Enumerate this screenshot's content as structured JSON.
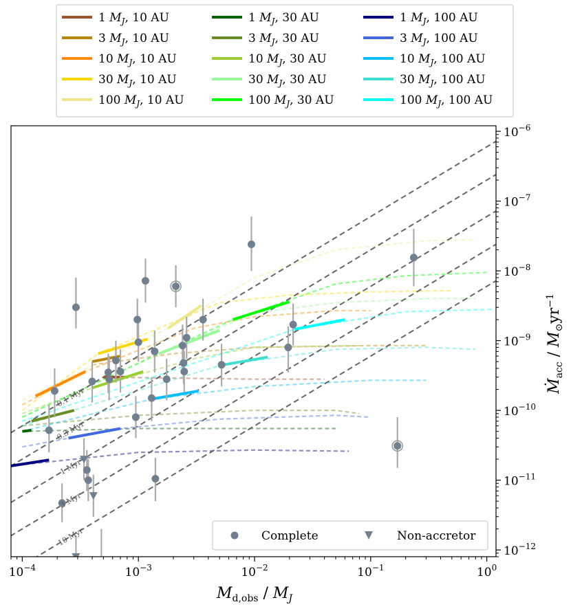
{
  "chart_data": {
    "type": "scatter",
    "x_scale": "log",
    "y_scale": "log",
    "xlim": [
      8e-05,
      1.2
    ],
    "ylim": [
      8e-13,
      1.2e-06
    ],
    "xlabel": "M_d,obs / M_J",
    "ylabel": "Ṁ_acc / M⊙yr⁻¹",
    "x_ticks": [
      {
        "value": 0.0001,
        "label": "10",
        "exp": "−4"
      },
      {
        "value": 0.001,
        "label": "10",
        "exp": "−3"
      },
      {
        "value": 0.01,
        "label": "10",
        "exp": "−2"
      },
      {
        "value": 0.1,
        "label": "10",
        "exp": "−1"
      },
      {
        "value": 1,
        "label": "10",
        "exp": "0"
      }
    ],
    "y_ticks": [
      {
        "value": 1e-12,
        "label": "10",
        "exp": "−12"
      },
      {
        "value": 1e-11,
        "label": "10",
        "exp": "−11"
      },
      {
        "value": 1e-10,
        "label": "10",
        "exp": "−10"
      },
      {
        "value": 1e-09,
        "label": "10",
        "exp": "−9"
      },
      {
        "value": 1e-08,
        "label": "10",
        "exp": "−8"
      },
      {
        "value": 1e-07,
        "label": "10",
        "exp": "−7"
      },
      {
        "value": 1e-06,
        "label": "10",
        "exp": "−6"
      }
    ],
    "legend_top": [
      {
        "label": "1 M_J, 10 AU",
        "mass": "1",
        "dist": "10 AU",
        "color": "#a0522d"
      },
      {
        "label": "3 M_J, 10 AU",
        "mass": "3",
        "dist": "10 AU",
        "color": "#b8860b"
      },
      {
        "label": "10 M_J, 10 AU",
        "mass": "10",
        "dist": "10 AU",
        "color": "#ff8c00"
      },
      {
        "label": "30 M_J, 10 AU",
        "mass": "30",
        "dist": "10 AU",
        "color": "#ffd700"
      },
      {
        "label": "100 M_J, 10 AU",
        "mass": "100",
        "dist": "10 AU",
        "color": "#f0e68c"
      },
      {
        "label": "1 M_J, 30 AU",
        "mass": "1",
        "dist": "30 AU",
        "color": "#006400"
      },
      {
        "label": "3 M_J, 30 AU",
        "mass": "3",
        "dist": "30 AU",
        "color": "#6b8e23"
      },
      {
        "label": "10 M_J, 30 AU",
        "mass": "10",
        "dist": "30 AU",
        "color": "#9acd32"
      },
      {
        "label": "30 M_J, 30 AU",
        "mass": "30",
        "dist": "30 AU",
        "color": "#98fb98"
      },
      {
        "label": "100 M_J, 30 AU",
        "mass": "100",
        "dist": "30 AU",
        "color": "#00ff00"
      },
      {
        "label": "1 M_J, 100 AU",
        "mass": "1",
        "dist": "100 AU",
        "color": "#000080"
      },
      {
        "label": "3 M_J, 100 AU",
        "mass": "3",
        "dist": "100 AU",
        "color": "#4169e1"
      },
      {
        "label": "10 M_J, 100 AU",
        "mass": "10",
        "dist": "100 AU",
        "color": "#00bfff"
      },
      {
        "label": "30 M_J, 100 AU",
        "mass": "30",
        "dist": "100 AU",
        "color": "#40e0d0"
      },
      {
        "label": "100 M_J, 100 AU",
        "mass": "100",
        "dist": "100 AU",
        "color": "#00ffff"
      }
    ],
    "legend_bottom": [
      {
        "label": "Complete",
        "marker": "circle",
        "color": "#708090"
      },
      {
        "label": "Non-accretor",
        "marker": "triangle-down",
        "color": "#708090"
      }
    ],
    "isochrones": [
      {
        "label": "0.1 Myr",
        "y_at_x_1": 6e-07,
        "label_x": 0.00026,
        "angle": -30
      },
      {
        "label": "0.3 Myr",
        "y_at_x_1": 2e-07,
        "label_x": 0.00026,
        "angle": -30
      },
      {
        "label": "1 Myr",
        "y_at_x_1": 6e-08,
        "label_x": 0.00026,
        "angle": -30
      },
      {
        "label": "3 Myr",
        "y_at_x_1": 2e-08,
        "label_x": 0.00026,
        "angle": -30
      },
      {
        "label": "10 Myr",
        "y_at_x_1": 6e-09,
        "label_x": 0.00026,
        "angle": -30
      }
    ],
    "tracks": [
      {
        "name": "1 M_J, 10 AU",
        "color": "#a0522d",
        "bold": [
          [
            0.0005,
            3e-10
          ],
          [
            0.0008,
            3e-10
          ]
        ],
        "faded": [
          [
            0.0005,
            3e-10
          ],
          [
            0.002,
            2.9e-10
          ],
          [
            0.01,
            2.8e-10
          ],
          [
            0.04,
            2.8e-10
          ]
        ]
      },
      {
        "name": "3 M_J, 10 AU",
        "color": "#b8860b",
        "bold": [
          [
            0.0004,
            5e-10
          ],
          [
            0.0007,
            6e-10
          ]
        ],
        "faded": [
          [
            0.0004,
            4.5e-10
          ],
          [
            0.002,
            6.5e-10
          ],
          [
            0.01,
            8e-10
          ],
          [
            0.1,
            8.5e-10
          ],
          [
            0.3,
            8.5e-10
          ]
        ]
      },
      {
        "name": "10 M_J, 10 AU",
        "color": "#ff8c00",
        "bold": [
          [
            0.00013,
            1.6e-10
          ],
          [
            0.00035,
            3.6e-10
          ]
        ],
        "faded": [
          [
            0.0001,
            1.2e-10
          ],
          [
            0.00035,
            3.6e-10
          ],
          [
            0.003,
            1.5e-09
          ],
          [
            0.01,
            2.2e-09
          ],
          [
            0.05,
            2.7e-09
          ],
          [
            0.1,
            2.7e-09
          ]
        ]
      },
      {
        "name": "30 M_J, 10 AU",
        "color": "#ffd700",
        "bold": [
          [
            0.00045,
            6.5e-10
          ],
          [
            0.0012,
            1.05e-09
          ]
        ],
        "faded": [
          [
            0.0001,
            1e-10
          ],
          [
            0.00045,
            6.5e-10
          ],
          [
            0.005,
            3.5e-09
          ],
          [
            0.02,
            4.5e-09
          ],
          [
            0.1,
            5e-09
          ],
          [
            0.5,
            5.2e-09
          ]
        ]
      },
      {
        "name": "100 M_J, 10 AU",
        "color": "#f0e68c",
        "bold": [
          [
            0.0018,
            1.5e-09
          ],
          [
            0.0035,
            3.2e-09
          ]
        ],
        "faded": [
          [
            0.0001,
            1.4e-10
          ],
          [
            0.0018,
            1.5e-09
          ],
          [
            0.01,
            8e-09
          ],
          [
            0.05,
            2e-08
          ],
          [
            0.3,
            2.7e-08
          ],
          [
            0.8,
            2.8e-08
          ]
        ]
      },
      {
        "name": "1 M_J, 30 AU",
        "color": "#006400",
        "bold": [
          [
            0.0001,
            5e-11
          ],
          [
            0.00012,
            5.2e-11
          ]
        ],
        "faded": [
          [
            0.0001,
            5e-11
          ],
          [
            0.001,
            5.5e-11
          ],
          [
            0.01,
            5.5e-11
          ],
          [
            0.05,
            5.5e-11
          ]
        ]
      },
      {
        "name": "3 M_J, 30 AU",
        "color": "#6b8e23",
        "bold": [
          [
            0.00012,
            7e-11
          ],
          [
            0.00028,
            1e-10
          ]
        ],
        "faded": [
          [
            0.0001,
            6e-11
          ],
          [
            0.001,
            8.5e-11
          ],
          [
            0.01,
            1e-10
          ],
          [
            0.05,
            1e-10
          ],
          [
            0.08,
            9e-11
          ]
        ]
      },
      {
        "name": "10 M_J, 30 AU",
        "color": "#9acd32",
        "bold": [
          [
            0.0004,
            2.1e-10
          ],
          [
            0.0011,
            3.6e-10
          ]
        ],
        "faded": [
          [
            0.0001,
            9e-11
          ],
          [
            0.0004,
            2.1e-10
          ],
          [
            0.003,
            5.5e-10
          ],
          [
            0.01,
            8e-10
          ],
          [
            0.08,
            8.5e-10
          ]
        ]
      },
      {
        "name": "30 M_J, 30 AU",
        "color": "#98fb98",
        "bold": [
          [
            0.0015,
            6.5e-10
          ],
          [
            0.005,
            1.4e-09
          ]
        ],
        "faded": [
          [
            0.0001,
            8e-11
          ],
          [
            0.0015,
            6.5e-10
          ],
          [
            0.01,
            2.5e-09
          ],
          [
            0.05,
            3.5e-09
          ],
          [
            0.3,
            4e-09
          ],
          [
            0.8,
            4e-09
          ]
        ]
      },
      {
        "name": "100 M_J, 30 AU",
        "color": "#00ff00",
        "bold": [
          [
            0.0065,
            2e-09
          ],
          [
            0.02,
            3.6e-09
          ]
        ],
        "faded": [
          [
            0.0001,
            8e-11
          ],
          [
            0.0065,
            2e-09
          ],
          [
            0.05,
            6.5e-09
          ],
          [
            0.2,
            8.5e-09
          ],
          [
            1,
            9.5e-09
          ]
        ]
      },
      {
        "name": "1 M_J, 100 AU",
        "color": "#000080",
        "bold": [
          [
            8e-05,
            1.6e-11
          ],
          [
            0.00017,
            1.95e-11
          ]
        ],
        "faded": [
          [
            8e-05,
            1.6e-11
          ],
          [
            0.001,
            2.5e-11
          ],
          [
            0.01,
            2.7e-11
          ],
          [
            0.065,
            2.6e-11
          ]
        ]
      },
      {
        "name": "3 M_J, 100 AU",
        "color": "#4169e1",
        "bold": [
          [
            0.00025,
            4e-11
          ],
          [
            0.0007,
            5.5e-11
          ]
        ],
        "faded": [
          [
            0.0001,
            3e-11
          ],
          [
            0.0007,
            5.5e-11
          ],
          [
            0.005,
            7.5e-11
          ],
          [
            0.05,
            8.5e-11
          ],
          [
            0.1,
            8e-11
          ]
        ]
      },
      {
        "name": "10 M_J, 100 AU",
        "color": "#00bfff",
        "bold": [
          [
            0.0013,
            1.45e-10
          ],
          [
            0.0033,
            1.9e-10
          ]
        ],
        "faded": [
          [
            0.0001,
            5e-11
          ],
          [
            0.0013,
            1.45e-10
          ],
          [
            0.01,
            2.2e-10
          ],
          [
            0.1,
            2.7e-10
          ],
          [
            0.3,
            2.7e-10
          ]
        ]
      },
      {
        "name": "30 M_J, 100 AU",
        "color": "#40e0d0",
        "bold": [
          [
            0.005,
            4.4e-10
          ],
          [
            0.013,
            5.8e-10
          ]
        ],
        "faded": [
          [
            0.0001,
            6e-11
          ],
          [
            0.005,
            4.4e-10
          ],
          [
            0.05,
            7.5e-10
          ],
          [
            0.3,
            8e-10
          ],
          [
            0.8,
            7.5e-10
          ]
        ]
      },
      {
        "name": "100 M_J, 100 AU",
        "color": "#00ffff",
        "bold": [
          [
            0.022,
            1.45e-09
          ],
          [
            0.06,
            2e-09
          ]
        ],
        "faded": [
          [
            0.0001,
            7e-11
          ],
          [
            0.022,
            1.45e-09
          ],
          [
            0.2,
            2.6e-09
          ],
          [
            1.1,
            2.8e-09
          ]
        ]
      }
    ],
    "points_complete": [
      {
        "x": 0.00017,
        "y": 5.2e-11,
        "ylo": 2.5e-11,
        "yhi": 1.2e-10
      },
      {
        "x": 0.00019,
        "y": 1.9e-10,
        "ylo": 8e-11,
        "yhi": 4e-10
      },
      {
        "x": 0.00022,
        "y": 4.7e-12,
        "ylo": 2.5e-12,
        "yhi": 9e-12
      },
      {
        "x": 0.00029,
        "y": 3e-09,
        "ylo": 1.5e-09,
        "yhi": 8e-09
      },
      {
        "x": 0.00036,
        "y": 1.4e-11,
        "ylo": 7e-12,
        "yhi": 2.7e-11
      },
      {
        "x": 0.00037,
        "y": 1e-11,
        "ylo": 5e-12,
        "yhi": 2e-11
      },
      {
        "x": 0.0004,
        "y": 2.6e-10,
        "ylo": 1.3e-10,
        "yhi": 5e-10
      },
      {
        "x": 0.00055,
        "y": 3.5e-10,
        "ylo": 1.8e-10,
        "yhi": 6.5e-10
      },
      {
        "x": 0.00056,
        "y": 2.8e-10,
        "ylo": 1.4e-10,
        "yhi": 6e-10
      },
      {
        "x": 0.00064,
        "y": 5.2e-10,
        "ylo": 2.5e-10,
        "yhi": 1e-09
      },
      {
        "x": 0.0007,
        "y": 3.6e-10,
        "ylo": 1.8e-10,
        "yhi": 7.5e-10
      },
      {
        "x": 0.00095,
        "y": 8e-11,
        "ylo": 4e-11,
        "yhi": 1.6e-10
      },
      {
        "x": 0.00098,
        "y": 2e-09,
        "ylo": 1e-09,
        "yhi": 4e-09
      },
      {
        "x": 0.001,
        "y": 9.5e-10,
        "ylo": 5e-10,
        "yhi": 1.9e-09
      },
      {
        "x": 0.00115,
        "y": 7.2e-09,
        "ylo": 3.5e-09,
        "yhi": 1.5e-08
      },
      {
        "x": 0.0013,
        "y": 1.5e-10,
        "ylo": 7e-11,
        "yhi": 3e-10
      },
      {
        "x": 0.00138,
        "y": 7e-10,
        "ylo": 3.5e-10,
        "yhi": 1.4e-09
      },
      {
        "x": 0.0014,
        "y": 1.05e-11,
        "ylo": 5e-12,
        "yhi": 2.1e-11
      },
      {
        "x": 0.00175,
        "y": 2.8e-10,
        "ylo": 1.4e-10,
        "yhi": 5.5e-10
      },
      {
        "x": 0.0021,
        "y": 6e-09,
        "ylo": 3e-09,
        "yhi": 1.2e-08
      },
      {
        "x": 0.0024,
        "y": 8.5e-10,
        "ylo": 4e-10,
        "yhi": 1.7e-09
      },
      {
        "x": 0.00245,
        "y": 4.8e-10,
        "ylo": 2.4e-10,
        "yhi": 9.5e-10
      },
      {
        "x": 0.00248,
        "y": 3.6e-10,
        "ylo": 1.8e-10,
        "yhi": 7e-10
      },
      {
        "x": 0.0026,
        "y": 1.1e-09,
        "ylo": 5.5e-10,
        "yhi": 2.2e-09
      },
      {
        "x": 0.0036,
        "y": 2e-09,
        "ylo": 1e-09,
        "yhi": 4e-09
      },
      {
        "x": 0.0052,
        "y": 4.5e-10,
        "ylo": 2.2e-10,
        "yhi": 9e-10
      },
      {
        "x": 0.0094,
        "y": 2.4e-08,
        "ylo": 1e-08,
        "yhi": 6e-08
      },
      {
        "x": 0.0195,
        "y": 8e-10,
        "ylo": 3.5e-10,
        "yhi": 1.6e-09
      },
      {
        "x": 0.0215,
        "y": 1.7e-09,
        "ylo": 8.5e-10,
        "yhi": 3.4e-09
      },
      {
        "x": 0.235,
        "y": 1.55e-08,
        "ylo": 6e-09,
        "yhi": 4e-08
      },
      {
        "x": 0.17,
        "y": 3.1e-11,
        "ylo": 1.5e-11,
        "yhi": 8e-11
      }
    ],
    "points_ringed": [
      {
        "x": 0.0021,
        "y": 6e-09
      },
      {
        "x": 0.17,
        "y": 3.1e-11
      }
    ],
    "points_nonaccretor": [
      {
        "x": 0.00029,
        "y": 8e-13,
        "ylo": 5e-13,
        "yhi": 1.6e-12
      },
      {
        "x": 0.00034,
        "y": 2e-11,
        "ylo": 1e-11,
        "yhi": 4e-11
      },
      {
        "x": 0.00041,
        "y": 6e-12,
        "ylo": 3e-12,
        "yhi": 1.2e-11
      }
    ],
    "error_only": [
      {
        "x": 0.00048,
        "ylo": 4e-13,
        "yhi": 2e-12
      }
    ]
  }
}
